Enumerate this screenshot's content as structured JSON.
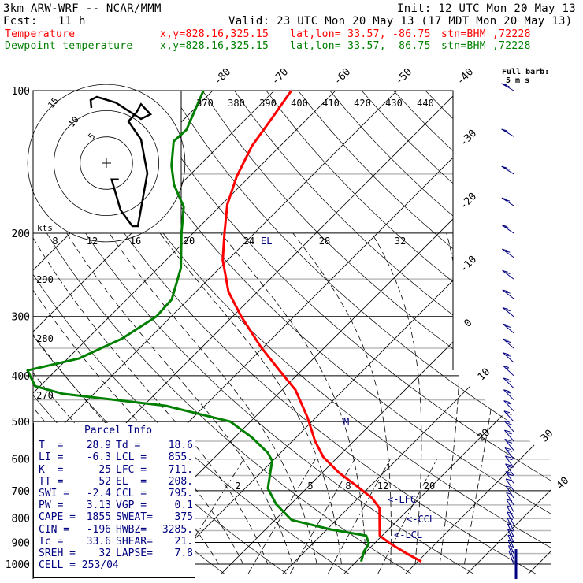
{
  "header": {
    "model": "3km ARW-WRF -- NCAR/MMM",
    "init": "Init: 12 UTC Mon 20 May 13",
    "fcst": "Fcst:   11 h",
    "valid": "Valid: 23 UTC Mon 20 May 13 (17 MDT Mon 20 May 13)",
    "temp_label": "Temperature",
    "dew_label": "Dewpoint temperature",
    "xy": "x,y=828.16,325.15",
    "latlon": "lat,lon= 33.57, -86.75",
    "stn": "stn=BHM ,72228"
  },
  "colors": {
    "temperature": "#ff0000",
    "dewpoint": "#008000",
    "info": "#000080",
    "barbs": "#000080"
  },
  "parcel_info": {
    "title": "Parcel Info",
    "rows": [
      [
        "T  =",
        "28.9",
        "Td =",
        "18.6"
      ],
      [
        "LI =",
        "-6.3",
        "LCL =",
        "855."
      ],
      [
        "K  =",
        "25",
        "LFC =",
        "711."
      ],
      [
        "TT =",
        "52",
        "EL  =",
        "208."
      ],
      [
        "SWI =",
        "-2.4",
        "CCL =",
        "795."
      ],
      [
        "PW =",
        "3.13",
        "VGP =",
        "0.1"
      ],
      [
        "CAPE =",
        "1855",
        "SWEAT=",
        "375"
      ],
      [
        "CIN =",
        "-196",
        "HWBZ=",
        "3285."
      ],
      [
        "Tc =",
        "33.6",
        "SHEAR=",
        "21."
      ],
      [
        "SREH =",
        "32",
        "LAPSE=",
        "7.8"
      ]
    ],
    "cell": "CELL = 253/04"
  },
  "chart_data": {
    "type": "skew-t",
    "pressure_levels": [
      "100",
      "200",
      "300",
      "400",
      "500",
      "600",
      "700",
      "800",
      "900",
      "1000"
    ],
    "isotherm_labels": [
      "-80",
      "-70",
      "-60",
      "-50",
      "-40",
      "-30",
      "-20",
      "-10",
      "0",
      "10",
      "20",
      "30",
      "40"
    ],
    "theta_e_labels": [
      "370",
      "380",
      "390",
      "400",
      "410",
      "420",
      "430",
      "440"
    ],
    "theta_labels": [
      "290",
      "280",
      "270"
    ],
    "mixing_ratio_labels": [
      "2",
      "5",
      "8",
      "12",
      "20"
    ],
    "hodo_scale_labels": [
      "8",
      "12",
      "16",
      "20",
      "24",
      "28",
      "32"
    ],
    "hodo_ring_labels": [
      "5",
      "10",
      "15"
    ],
    "hodo_units": "kts",
    "level_markers": {
      "el": "EL",
      "lfc": "<-LFC",
      "ccl": "<-CCL",
      "lcl": "<-LCL",
      "m": "M"
    },
    "full_barb_note": "Full barb:",
    "full_barb_units": "5 m s",
    "temperature": [
      [
        100,
        -67.2
      ],
      [
        114,
        -65.9
      ],
      [
        131,
        -64.6
      ],
      [
        152,
        -62.1
      ],
      [
        174,
        -59.1
      ],
      [
        200,
        -54.9
      ],
      [
        228,
        -50.8
      ],
      [
        266,
        -44.7
      ],
      [
        300,
        -38.6
      ],
      [
        347,
        -30.6
      ],
      [
        390,
        -23.6
      ],
      [
        429,
        -17.8
      ],
      [
        490,
        -11.4
      ],
      [
        550,
        -6.3
      ],
      [
        594,
        -2.4
      ],
      [
        641,
        2.7
      ],
      [
        679,
        7.2
      ],
      [
        725,
        12.2
      ],
      [
        762,
        15.1
      ],
      [
        871,
        19.6
      ],
      [
        905,
        22.6
      ],
      [
        948,
        26.7
      ],
      [
        988,
        30.6
      ]
    ],
    "dewpoint": [
      [
        100,
        -81.5
      ],
      [
        121,
        -77.9
      ],
      [
        128,
        -78.1
      ],
      [
        144,
        -74.5
      ],
      [
        158,
        -71.0
      ],
      [
        176,
        -65.8
      ],
      [
        200,
        -61.9
      ],
      [
        237,
        -56.3
      ],
      [
        276,
        -52.7
      ],
      [
        300,
        -52.4
      ],
      [
        334,
        -54.4
      ],
      [
        368,
        -58.2
      ],
      [
        390,
        -64.6
      ],
      [
        421,
        -60.8
      ],
      [
        437,
        -55.0
      ],
      [
        463,
        -36.4
      ],
      [
        500,
        -23.3
      ],
      [
        540,
        -17.2
      ],
      [
        582,
        -12.1
      ],
      [
        605,
        -10.1
      ],
      [
        692,
        -6.3
      ],
      [
        747,
        -2.4
      ],
      [
        807,
        2.7
      ],
      [
        845,
        10.6
      ],
      [
        871,
        17.4
      ],
      [
        905,
        19.1
      ],
      [
        940,
        19.6
      ],
      [
        988,
        20.8
      ]
    ],
    "hodograph_uv": [
      [
        2.35,
        -3.1
      ],
      [
        1.0,
        -3.1
      ],
      [
        2.7,
        -8.95
      ],
      [
        4.95,
        -12.0
      ],
      [
        6.0,
        -12.0
      ],
      [
        7.8,
        -1.95
      ],
      [
        6.6,
        4.5
      ],
      [
        4.2,
        7.95
      ],
      [
        5.7,
        9.6
      ],
      [
        6.6,
        11.2
      ],
      [
        8.4,
        9.3
      ],
      [
        6.6,
        8.4
      ],
      [
        1.8,
        11.5
      ],
      [
        -1.8,
        12.6
      ],
      [
        -3.0,
        12.0
      ],
      [
        -2.85,
        10.5
      ]
    ],
    "xlabel": "",
    "ylabel": "",
    "ylim": [
      1000,
      100
    ]
  }
}
